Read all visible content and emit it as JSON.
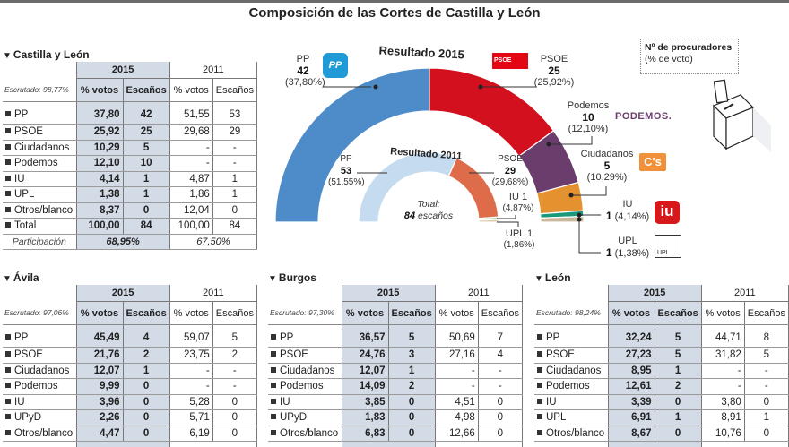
{
  "title": "Composición de las Cortes de Castilla y León",
  "legend": {
    "title": "Nº de procuradores",
    "subtitle": "(% de voto)"
  },
  "chart_data": [
    {
      "type": "pie",
      "subtype": "semicircle-parliament",
      "title": "Resultado 2015",
      "series": [
        {
          "name": "PP",
          "seats": 42,
          "pct_label": "(37,80%)",
          "color": "#4d8cc8"
        },
        {
          "name": "PSOE",
          "seats": 25,
          "pct_label": "(25,92%)",
          "color": "#d2101e"
        },
        {
          "name": "Podemos",
          "seats": 10,
          "pct_label": "(12,10%)",
          "color": "#6a3d6d"
        },
        {
          "name": "Ciudadanos",
          "seats": 5,
          "pct_label": "(10,29%)",
          "color": "#e3922f"
        },
        {
          "name": "IU",
          "seats": 1,
          "pct_label": "(4,14%)",
          "color": "#1a9a7a"
        },
        {
          "name": "UPL",
          "seats": 1,
          "pct_label": "(1,38%)",
          "color": "#c9b99a"
        }
      ],
      "total_seats": 84
    },
    {
      "type": "pie",
      "subtype": "semicircle-parliament",
      "title": "Resultado 2011",
      "series": [
        {
          "name": "PP",
          "seats": 53,
          "pct_label": "(51,55%)",
          "color": "#c5dbef"
        },
        {
          "name": "PSOE",
          "seats": 29,
          "pct_label": "(29,68%)",
          "color": "#de6b4a"
        },
        {
          "name": "IU",
          "seats": 1,
          "pct_label": "(4,87%)",
          "color": "#b8d8b0"
        },
        {
          "name": "UPL",
          "seats": 1,
          "pct_label": "(1,86%)",
          "color": "#d9c9a8"
        }
      ],
      "total_label": "Total:",
      "total_value": "84",
      "total_unit": "escaños"
    }
  ],
  "labels2015": {
    "pp": {
      "name": "PP",
      "seats": "42",
      "pct": "(37,80%)"
    },
    "psoe": {
      "name": "PSOE",
      "seats": "25",
      "pct": "(25,92%)"
    },
    "podemos": {
      "name": "Podemos",
      "seats": "10",
      "pct": "(12,10%)"
    },
    "cs": {
      "name": "Ciudadanos",
      "seats": "5",
      "pct": "(10,29%)"
    },
    "iu": {
      "name": "IU",
      "seats": "1",
      "pct": "(4,14%)"
    },
    "upl": {
      "name": "UPL",
      "seats": "1",
      "pct": "(1,38%)"
    }
  },
  "labels2011": {
    "pp": {
      "name": "PP",
      "seats": "53",
      "pct": "(51,55%)"
    },
    "psoe": {
      "name": "PSOE",
      "seats": "29",
      "pct": "(29,68%)"
    },
    "iu": {
      "name": "IU 1",
      "pct": "(4,87%)"
    },
    "upl": {
      "name": "UPL 1",
      "pct": "(1,86%)"
    },
    "total_label": "Total:",
    "total_value": "84",
    "total_unit": "escaños"
  },
  "logos": {
    "pp": "PP",
    "psoe": "PSOE",
    "podemos": "PODEMOS.",
    "cs": "C's",
    "iu": "iu",
    "upl": "UPL"
  },
  "tables": {
    "castilla_leon": {
      "title": "Castilla y León",
      "year_a": "2015",
      "year_b": "2011",
      "escrutado": "Escrutado: 98,77%",
      "cols": [
        "% votos",
        "Escaños",
        "% votos",
        "Escaños"
      ],
      "rows": [
        [
          "PP",
          "37,80",
          "42",
          "51,55",
          "53"
        ],
        [
          "PSOE",
          "25,92",
          "25",
          "29,68",
          "29"
        ],
        [
          "Ciudadanos",
          "10,29",
          "5",
          "-",
          "-"
        ],
        [
          "Podemos",
          "12,10",
          "10",
          "-",
          "-"
        ],
        [
          "IU",
          "4,14",
          "1",
          "4,87",
          "1"
        ],
        [
          "UPL",
          "1,38",
          "1",
          "1,86",
          "1"
        ],
        [
          "Otros/blanco",
          "8,37",
          "0",
          "12,04",
          "0"
        ],
        [
          "Total",
          "100,00",
          "84",
          "100,00",
          "84"
        ]
      ],
      "participacion_label": "Participación",
      "participacion_2015": "68,95%",
      "participacion_2011": "67,50%"
    },
    "avila": {
      "title": "Ávila",
      "year_a": "2015",
      "year_b": "2011",
      "escrutado": "Escrutado: 97,06%",
      "cols": [
        "% votos",
        "Escaños",
        "% votos",
        "Escaños"
      ],
      "rows": [
        [
          "PP",
          "45,49",
          "4",
          "59,07",
          "5"
        ],
        [
          "PSOE",
          "21,76",
          "2",
          "23,75",
          "2"
        ],
        [
          "Ciudadanos",
          "12,07",
          "1",
          "-",
          "-"
        ],
        [
          "Podemos",
          "9,99",
          "0",
          "-",
          "-"
        ],
        [
          "IU",
          "3,96",
          "0",
          "5,28",
          "0"
        ],
        [
          "UPyD",
          "2,26",
          "0",
          "5,71",
          "0"
        ],
        [
          "Otros/blanco",
          "4,47",
          "0",
          "6,19",
          "0"
        ]
      ]
    },
    "burgos": {
      "title": "Burgos",
      "year_a": "2015",
      "year_b": "2011",
      "escrutado": "Escrutado: 97,30%",
      "cols": [
        "% votos",
        "Escaños",
        "% votos",
        "Escaños"
      ],
      "rows": [
        [
          "PP",
          "36,57",
          "5",
          "50,69",
          "7"
        ],
        [
          "PSOE",
          "24,76",
          "3",
          "27,16",
          "4"
        ],
        [
          "Ciudadanos",
          "12,07",
          "1",
          "-",
          "-"
        ],
        [
          "Podemos",
          "14,09",
          "2",
          "-",
          "-"
        ],
        [
          "IU",
          "3,85",
          "0",
          "4,51",
          "0"
        ],
        [
          "UPyD",
          "1,83",
          "0",
          "4,98",
          "0"
        ],
        [
          "Otros/blanco",
          "6,83",
          "0",
          "12,66",
          "0"
        ]
      ]
    },
    "leon": {
      "title": "León",
      "year_a": "2015",
      "year_b": "2011",
      "escrutado": "Escrutado: 98,24%",
      "cols": [
        "% votos",
        "Escaños",
        "% votos",
        "Escaños"
      ],
      "rows": [
        [
          "PP",
          "32,24",
          "5",
          "44,71",
          "8"
        ],
        [
          "PSOE",
          "27,23",
          "5",
          "31,82",
          "5"
        ],
        [
          "Ciudadanos",
          "8,95",
          "1",
          "-",
          "-"
        ],
        [
          "Podemos",
          "12,61",
          "2",
          "-",
          "-"
        ],
        [
          "IU",
          "3,39",
          "0",
          "3,80",
          "0"
        ],
        [
          "UPL",
          "6,91",
          "1",
          "8,91",
          "1"
        ],
        [
          "Otros/blanco",
          "8,67",
          "0",
          "10,76",
          "0"
        ]
      ]
    }
  }
}
